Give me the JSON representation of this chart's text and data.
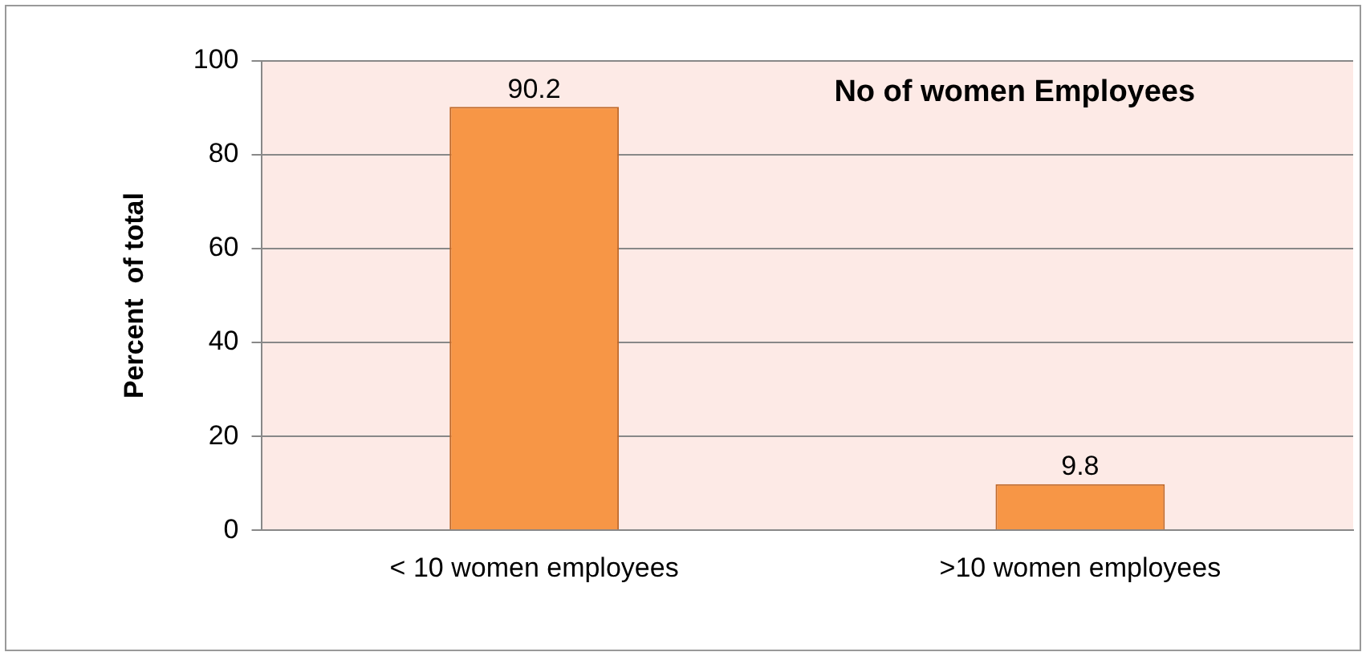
{
  "chart_data": {
    "type": "bar",
    "title": "No of women Employees",
    "ylabel": "Percent  of total",
    "categories": [
      "< 10 women employees",
      ">10 women employees"
    ],
    "values": [
      90.2,
      9.8
    ],
    "color": "#f79646",
    "ylim": [
      0,
      100
    ],
    "yticks": [
      0,
      20,
      40,
      60,
      80,
      100
    ],
    "grid": "y",
    "data_labels": true,
    "legend": false
  }
}
